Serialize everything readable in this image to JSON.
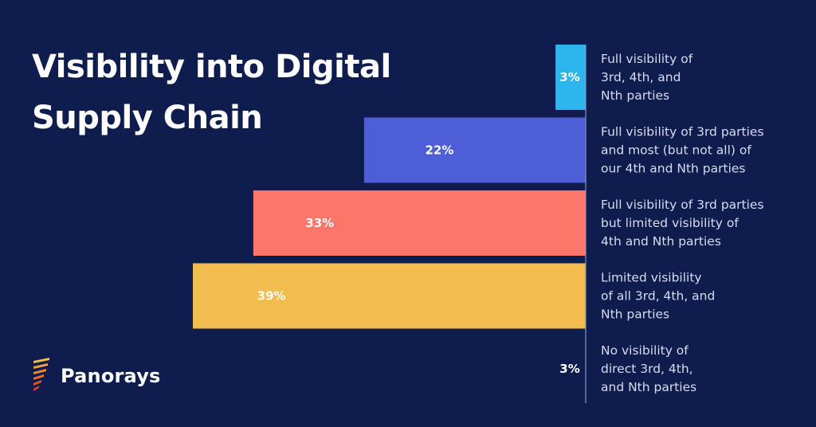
{
  "brand": {
    "name": "Panorays"
  },
  "chart_data": {
    "type": "bar",
    "orientation": "horizontal",
    "title": [
      "Visibility into Digital",
      "Supply Chain"
    ],
    "unit": "%",
    "xlim": [
      0,
      39
    ],
    "categories": [
      [
        "Full visibility of",
        "3rd, 4th, and",
        "Nth parties"
      ],
      [
        "Full visibility of 3rd parties",
        "and most (but not all) of",
        "our 4th and Nth parties"
      ],
      [
        "Full visibility of 3rd parties",
        "but limited visibility of",
        "4th and Nth parties"
      ],
      [
        "Limited visibility",
        "of all 3rd, 4th, and",
        "Nth parties"
      ],
      [
        "No visibility of",
        "direct 3rd, 4th,",
        "and Nth parties"
      ]
    ],
    "values": [
      3,
      22,
      33,
      39,
      3
    ],
    "value_labels": [
      "3%",
      "22%",
      "33%",
      "39%",
      "3%"
    ],
    "colors": [
      "#2db6ee",
      "#4e5ed6",
      "#fd766a",
      "#f3bc4f",
      "#0f1d4e"
    ],
    "axis_color": "#8a93c7",
    "label_color": "#d7dcec"
  }
}
